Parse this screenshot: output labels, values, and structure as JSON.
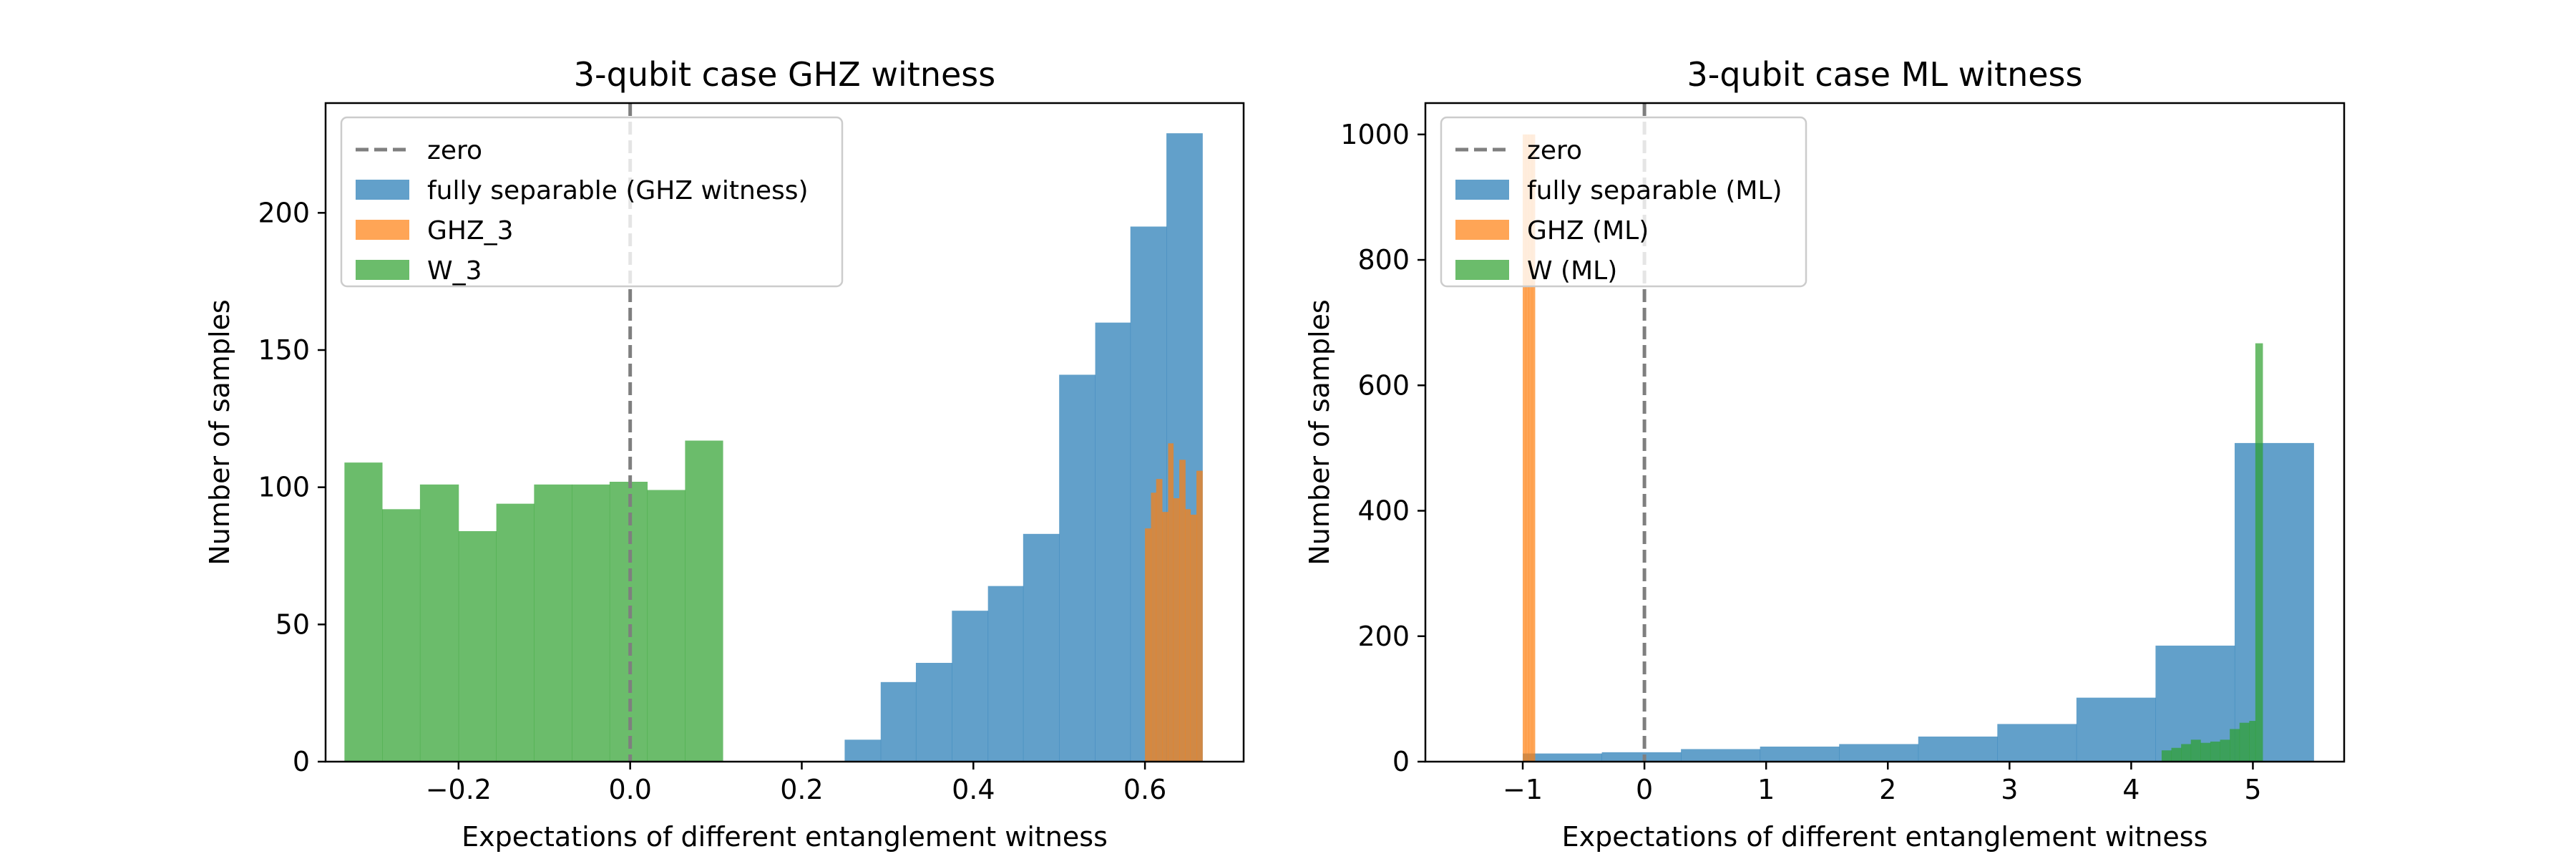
{
  "colors": {
    "blue": "#1f77b4",
    "orange": "#ff7f0e",
    "green": "#2ca02c",
    "zero_line": "#7f7f7f"
  },
  "chart_data": [
    {
      "type": "histogram",
      "title": "3-qubit case GHZ witness",
      "xlabel": "Expectations of different entanglement witness",
      "ylabel": "Number of samples",
      "xlim": [
        -0.355,
        0.715
      ],
      "ylim": [
        0,
        240
      ],
      "xticks": [
        -0.2,
        0.0,
        0.2,
        0.4,
        0.6
      ],
      "xtick_labels": [
        "−0.2",
        "0.0",
        "0.2",
        "0.4",
        "0.6"
      ],
      "yticks": [
        0,
        50,
        100,
        150,
        200
      ],
      "ytick_labels": [
        "0",
        "50",
        "100",
        "150",
        "200"
      ],
      "grid": false,
      "legend_position": "upper-left",
      "reference_line": {
        "name": "zero",
        "x": 0,
        "style": "dashed"
      },
      "series": [
        {
          "name": "fully separable (GHZ witness)",
          "color_key": "blue",
          "bins": [
            [
              0.25,
              0.292,
              8
            ],
            [
              0.292,
              0.333,
              29
            ],
            [
              0.333,
              0.375,
              36
            ],
            [
              0.375,
              0.417,
              55
            ],
            [
              0.417,
              0.458,
              64
            ],
            [
              0.458,
              0.5,
              83
            ],
            [
              0.5,
              0.542,
              141
            ],
            [
              0.542,
              0.583,
              160
            ],
            [
              0.583,
              0.625,
              195
            ],
            [
              0.625,
              0.667,
              229
            ]
          ]
        },
        {
          "name": "GHZ_3",
          "color_key": "orange",
          "bins": [
            [
              0.6,
              0.607,
              85
            ],
            [
              0.607,
              0.613,
              98
            ],
            [
              0.613,
              0.62,
              103
            ],
            [
              0.62,
              0.627,
              91
            ],
            [
              0.627,
              0.633,
              116
            ],
            [
              0.633,
              0.64,
              96
            ],
            [
              0.64,
              0.647,
              110
            ],
            [
              0.647,
              0.653,
              92
            ],
            [
              0.653,
              0.66,
              90
            ],
            [
              0.66,
              0.667,
              106
            ]
          ]
        },
        {
          "name": "W_3",
          "color_key": "green",
          "bins": [
            [
              -0.333,
              -0.289,
              109
            ],
            [
              -0.289,
              -0.245,
              92
            ],
            [
              -0.245,
              -0.2,
              101
            ],
            [
              -0.2,
              -0.156,
              84
            ],
            [
              -0.156,
              -0.112,
              94
            ],
            [
              -0.112,
              -0.068,
              101
            ],
            [
              -0.068,
              -0.024,
              101
            ],
            [
              -0.024,
              0.02,
              102
            ],
            [
              0.02,
              0.064,
              99
            ],
            [
              0.064,
              0.108,
              117
            ]
          ]
        }
      ]
    },
    {
      "type": "histogram",
      "title": "3-qubit case ML witness",
      "xlabel": "Expectations of different entanglement witness",
      "ylabel": "Number of samples",
      "xlim": [
        -1.8,
        5.75
      ],
      "ylim": [
        0,
        1050
      ],
      "xticks": [
        -1,
        0,
        1,
        2,
        3,
        4,
        5
      ],
      "xtick_labels": [
        "−1",
        "0",
        "1",
        "2",
        "3",
        "4",
        "5"
      ],
      "yticks": [
        0,
        200,
        400,
        600,
        800,
        1000
      ],
      "ytick_labels": [
        "0",
        "200",
        "400",
        "600",
        "800",
        "1000"
      ],
      "grid": false,
      "legend_position": "upper-left",
      "reference_line": {
        "name": "zero",
        "x": 0,
        "style": "dashed"
      },
      "series": [
        {
          "name": "fully separable (ML)",
          "color_key": "blue",
          "bins": [
            [
              -1.0,
              -0.35,
              13
            ],
            [
              -0.35,
              0.3,
              15
            ],
            [
              0.3,
              0.95,
              20
            ],
            [
              0.95,
              1.6,
              24
            ],
            [
              1.6,
              2.25,
              28
            ],
            [
              2.25,
              2.9,
              40
            ],
            [
              2.9,
              3.55,
              60
            ],
            [
              3.55,
              4.2,
              102
            ],
            [
              4.2,
              4.85,
              185
            ],
            [
              4.85,
              5.5,
              508
            ]
          ]
        },
        {
          "name": "GHZ (ML)",
          "color_key": "orange",
          "bins": [
            [
              -1.0,
              -0.975,
              1000
            ],
            [
              -0.975,
              -0.95,
              1000
            ],
            [
              -0.95,
              -0.925,
              1000
            ],
            [
              -0.925,
              -0.9,
              1000
            ]
          ]
        },
        {
          "name": "W (ML)",
          "color_key": "green",
          "bins": [
            [
              4.25,
              4.33,
              18
            ],
            [
              4.33,
              4.41,
              22
            ],
            [
              4.41,
              4.49,
              28
            ],
            [
              4.49,
              4.57,
              35
            ],
            [
              4.57,
              4.65,
              30
            ],
            [
              4.65,
              4.73,
              32
            ],
            [
              4.73,
              4.81,
              35
            ],
            [
              4.81,
              4.89,
              52
            ],
            [
              4.89,
              4.97,
              62
            ],
            [
              4.97,
              5.02,
              65
            ],
            [
              5.02,
              5.08,
              667
            ]
          ]
        }
      ]
    }
  ]
}
